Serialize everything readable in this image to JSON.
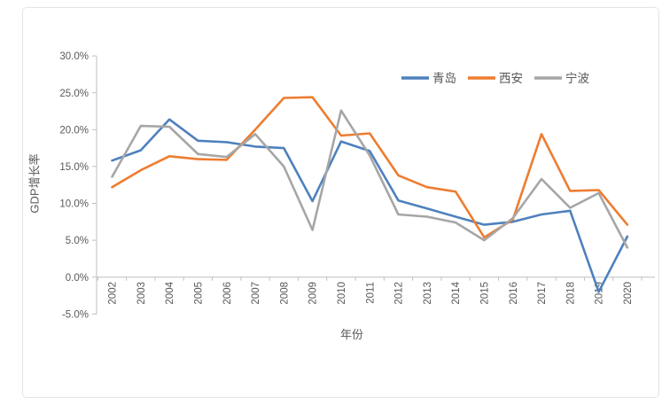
{
  "chart_data": {
    "type": "line",
    "title": "",
    "xlabel": "年份",
    "ylabel": "GDP增长率",
    "categories": [
      "2002",
      "2003",
      "2004",
      "2005",
      "2006",
      "2007",
      "2008",
      "2009",
      "2010",
      "2011",
      "2012",
      "2013",
      "2014",
      "2015",
      "2016",
      "2017",
      "2018",
      "2019",
      "2020"
    ],
    "series": [
      {
        "name": "青岛",
        "color": "#4e81bd",
        "values": [
          15.8,
          17.2,
          21.4,
          18.5,
          18.3,
          17.7,
          17.5,
          10.3,
          18.4,
          17.1,
          10.4,
          9.3,
          8.2,
          7.1,
          7.5,
          8.5,
          9.0,
          -2.0,
          5.5
        ]
      },
      {
        "name": "西安",
        "color": "#ed7d31",
        "values": [
          12.2,
          14.5,
          16.4,
          16.0,
          15.9,
          20.0,
          24.3,
          24.4,
          19.2,
          19.5,
          13.8,
          12.2,
          11.6,
          5.4,
          7.8,
          19.4,
          11.7,
          11.8,
          7.1
        ]
      },
      {
        "name": "宁波",
        "color": "#a6a6a6",
        "values": [
          13.6,
          20.5,
          20.4,
          16.7,
          16.3,
          19.4,
          15.0,
          6.4,
          22.6,
          16.5,
          8.5,
          8.2,
          7.4,
          5.0,
          8.0,
          13.3,
          9.4,
          11.4,
          4.0
        ]
      }
    ],
    "ylim": [
      -5,
      30
    ],
    "yticks": [
      {
        "value": 30,
        "label": "30.0%"
      },
      {
        "value": 25,
        "label": "25.0%"
      },
      {
        "value": 20,
        "label": "20.0%"
      },
      {
        "value": 15,
        "label": "15.0%"
      },
      {
        "value": 10,
        "label": "10.0%"
      },
      {
        "value": 5,
        "label": "5.0%"
      },
      {
        "value": 0,
        "label": "0.0%"
      },
      {
        "value": -5,
        "label": "-5.0%"
      }
    ],
    "grid": false,
    "legend_position": "top-right",
    "text_color": "#595959",
    "axis_color": "#bfbfbf"
  }
}
